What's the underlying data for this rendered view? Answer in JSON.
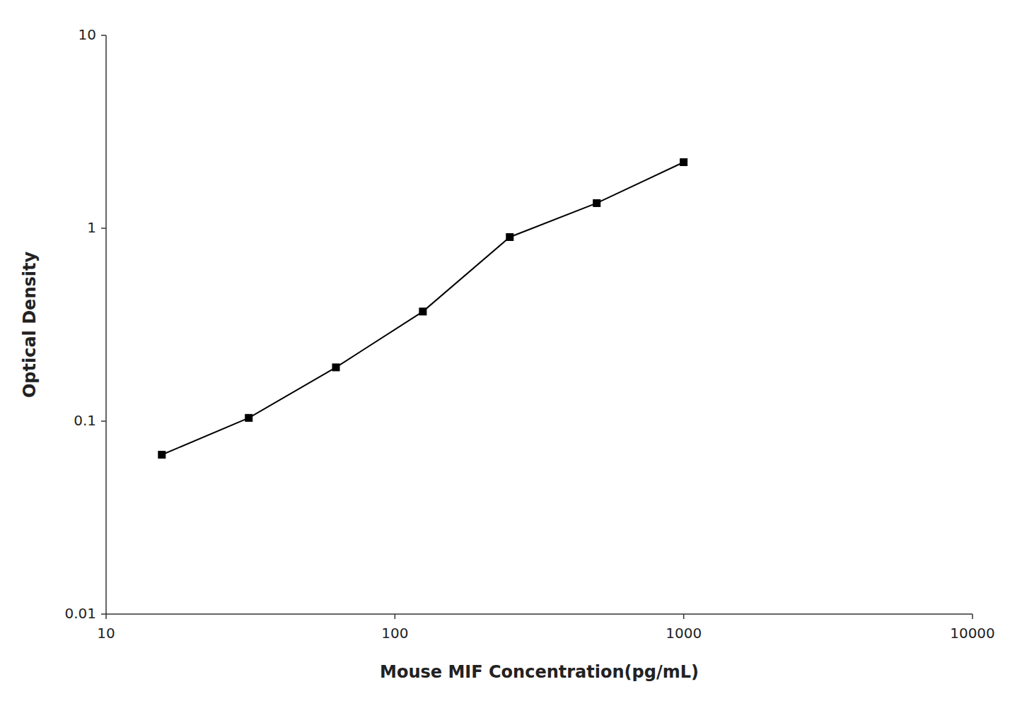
{
  "chart_data": {
    "type": "line",
    "xlabel": "Mouse MIF Concentration(pg/mL)",
    "ylabel": "Optical Density",
    "x": [
      15.6,
      31.2,
      62.5,
      125,
      250,
      500,
      1000
    ],
    "values": [
      0.067,
      0.104,
      0.19,
      0.37,
      0.9,
      1.35,
      2.2
    ],
    "xlim": [
      10,
      10000
    ],
    "ylim": [
      0.01,
      10
    ],
    "xticks": [
      10,
      100,
      1000,
      10000
    ],
    "yticks": [
      0.01,
      0.1,
      1,
      10
    ],
    "log": true,
    "grid": false,
    "color": "#000000",
    "marker": "square"
  }
}
